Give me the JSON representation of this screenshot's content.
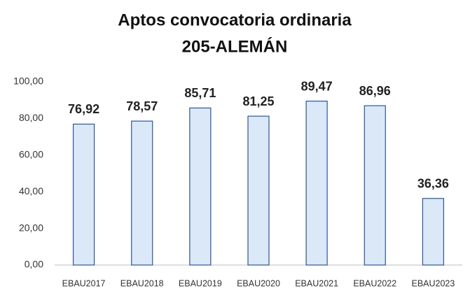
{
  "chart_data": {
    "type": "bar",
    "title": "Aptos convocatoria ordinaria",
    "subtitle": "205-ALEMÁN",
    "categories": [
      "EBAU2017",
      "EBAU2018",
      "EBAU2019",
      "EBAU2020",
      "EBAU2021",
      "EBAU2022",
      "EBAU2023"
    ],
    "values": [
      76.92,
      78.57,
      85.71,
      81.25,
      89.47,
      86.96,
      36.36
    ],
    "value_labels": [
      "76,92",
      "78,57",
      "85,71",
      "81,25",
      "89,47",
      "86,96",
      "36,36"
    ],
    "color": "#dae8f7",
    "edge_color": "#2f5597",
    "ylim": [
      0,
      100
    ],
    "yticks": [
      {
        "value": 0,
        "label": "0,00"
      },
      {
        "value": 20,
        "label": "20,00"
      },
      {
        "value": 40,
        "label": "40,00"
      },
      {
        "value": 60,
        "label": "60,00"
      },
      {
        "value": 80,
        "label": "80,00"
      },
      {
        "value": 100,
        "label": "100,00"
      }
    ],
    "grid": false
  }
}
